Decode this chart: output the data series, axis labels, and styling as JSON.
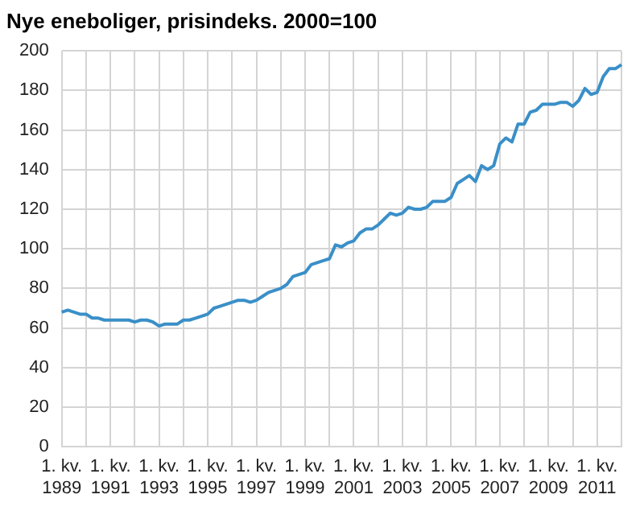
{
  "chart_data": {
    "type": "line",
    "title": "Nye eneboliger, prisindeks. 2000=100",
    "categories": [
      "1. kv. 1989",
      null,
      null,
      null,
      null,
      null,
      null,
      null,
      "1. kv. 1991",
      null,
      null,
      null,
      null,
      null,
      null,
      null,
      "1. kv. 1993",
      null,
      null,
      null,
      null,
      null,
      null,
      null,
      "1. kv. 1995",
      null,
      null,
      null,
      null,
      null,
      null,
      null,
      "1. kv. 1997",
      null,
      null,
      null,
      null,
      null,
      null,
      null,
      "1. kv. 1999",
      null,
      null,
      null,
      null,
      null,
      null,
      null,
      "1. kv. 2001",
      null,
      null,
      null,
      null,
      null,
      null,
      null,
      "1. kv. 2003",
      null,
      null,
      null,
      null,
      null,
      null,
      null,
      "1. kv. 2005",
      null,
      null,
      null,
      null,
      null,
      null,
      null,
      "1. kv. 2007",
      null,
      null,
      null,
      null,
      null,
      null,
      null,
      "1. kv. 2009",
      null,
      null,
      null,
      null,
      null,
      null,
      null,
      "1. kv. 2011",
      null,
      null,
      null,
      null
    ],
    "series": [
      {
        "color": "#3a8fc8",
        "values": [
          68,
          69,
          68,
          67,
          67,
          65,
          65,
          64,
          64,
          64,
          64,
          64,
          63,
          64,
          64,
          63,
          61,
          62,
          62,
          62,
          64,
          64,
          65,
          66,
          67,
          70,
          71,
          72,
          73,
          74,
          74,
          73,
          74,
          76,
          78,
          79,
          80,
          82,
          86,
          87,
          88,
          92,
          93,
          94,
          95,
          102,
          101,
          103,
          104,
          108,
          110,
          110,
          112,
          115,
          118,
          117,
          118,
          121,
          120,
          120,
          121,
          124,
          124,
          124,
          126,
          133,
          135,
          137,
          134,
          142,
          140,
          142,
          153,
          156,
          154,
          163,
          163,
          169,
          170,
          173,
          173,
          173,
          174,
          174,
          172,
          175,
          181,
          178,
          179,
          187,
          191,
          191,
          193
        ]
      }
    ],
    "ylim": [
      0,
      200
    ],
    "yticks": [
      0,
      20,
      40,
      60,
      80,
      100,
      120,
      140,
      160,
      180,
      200
    ],
    "grid": true,
    "legend": false,
    "marker": "none",
    "line_style": "solid"
  }
}
